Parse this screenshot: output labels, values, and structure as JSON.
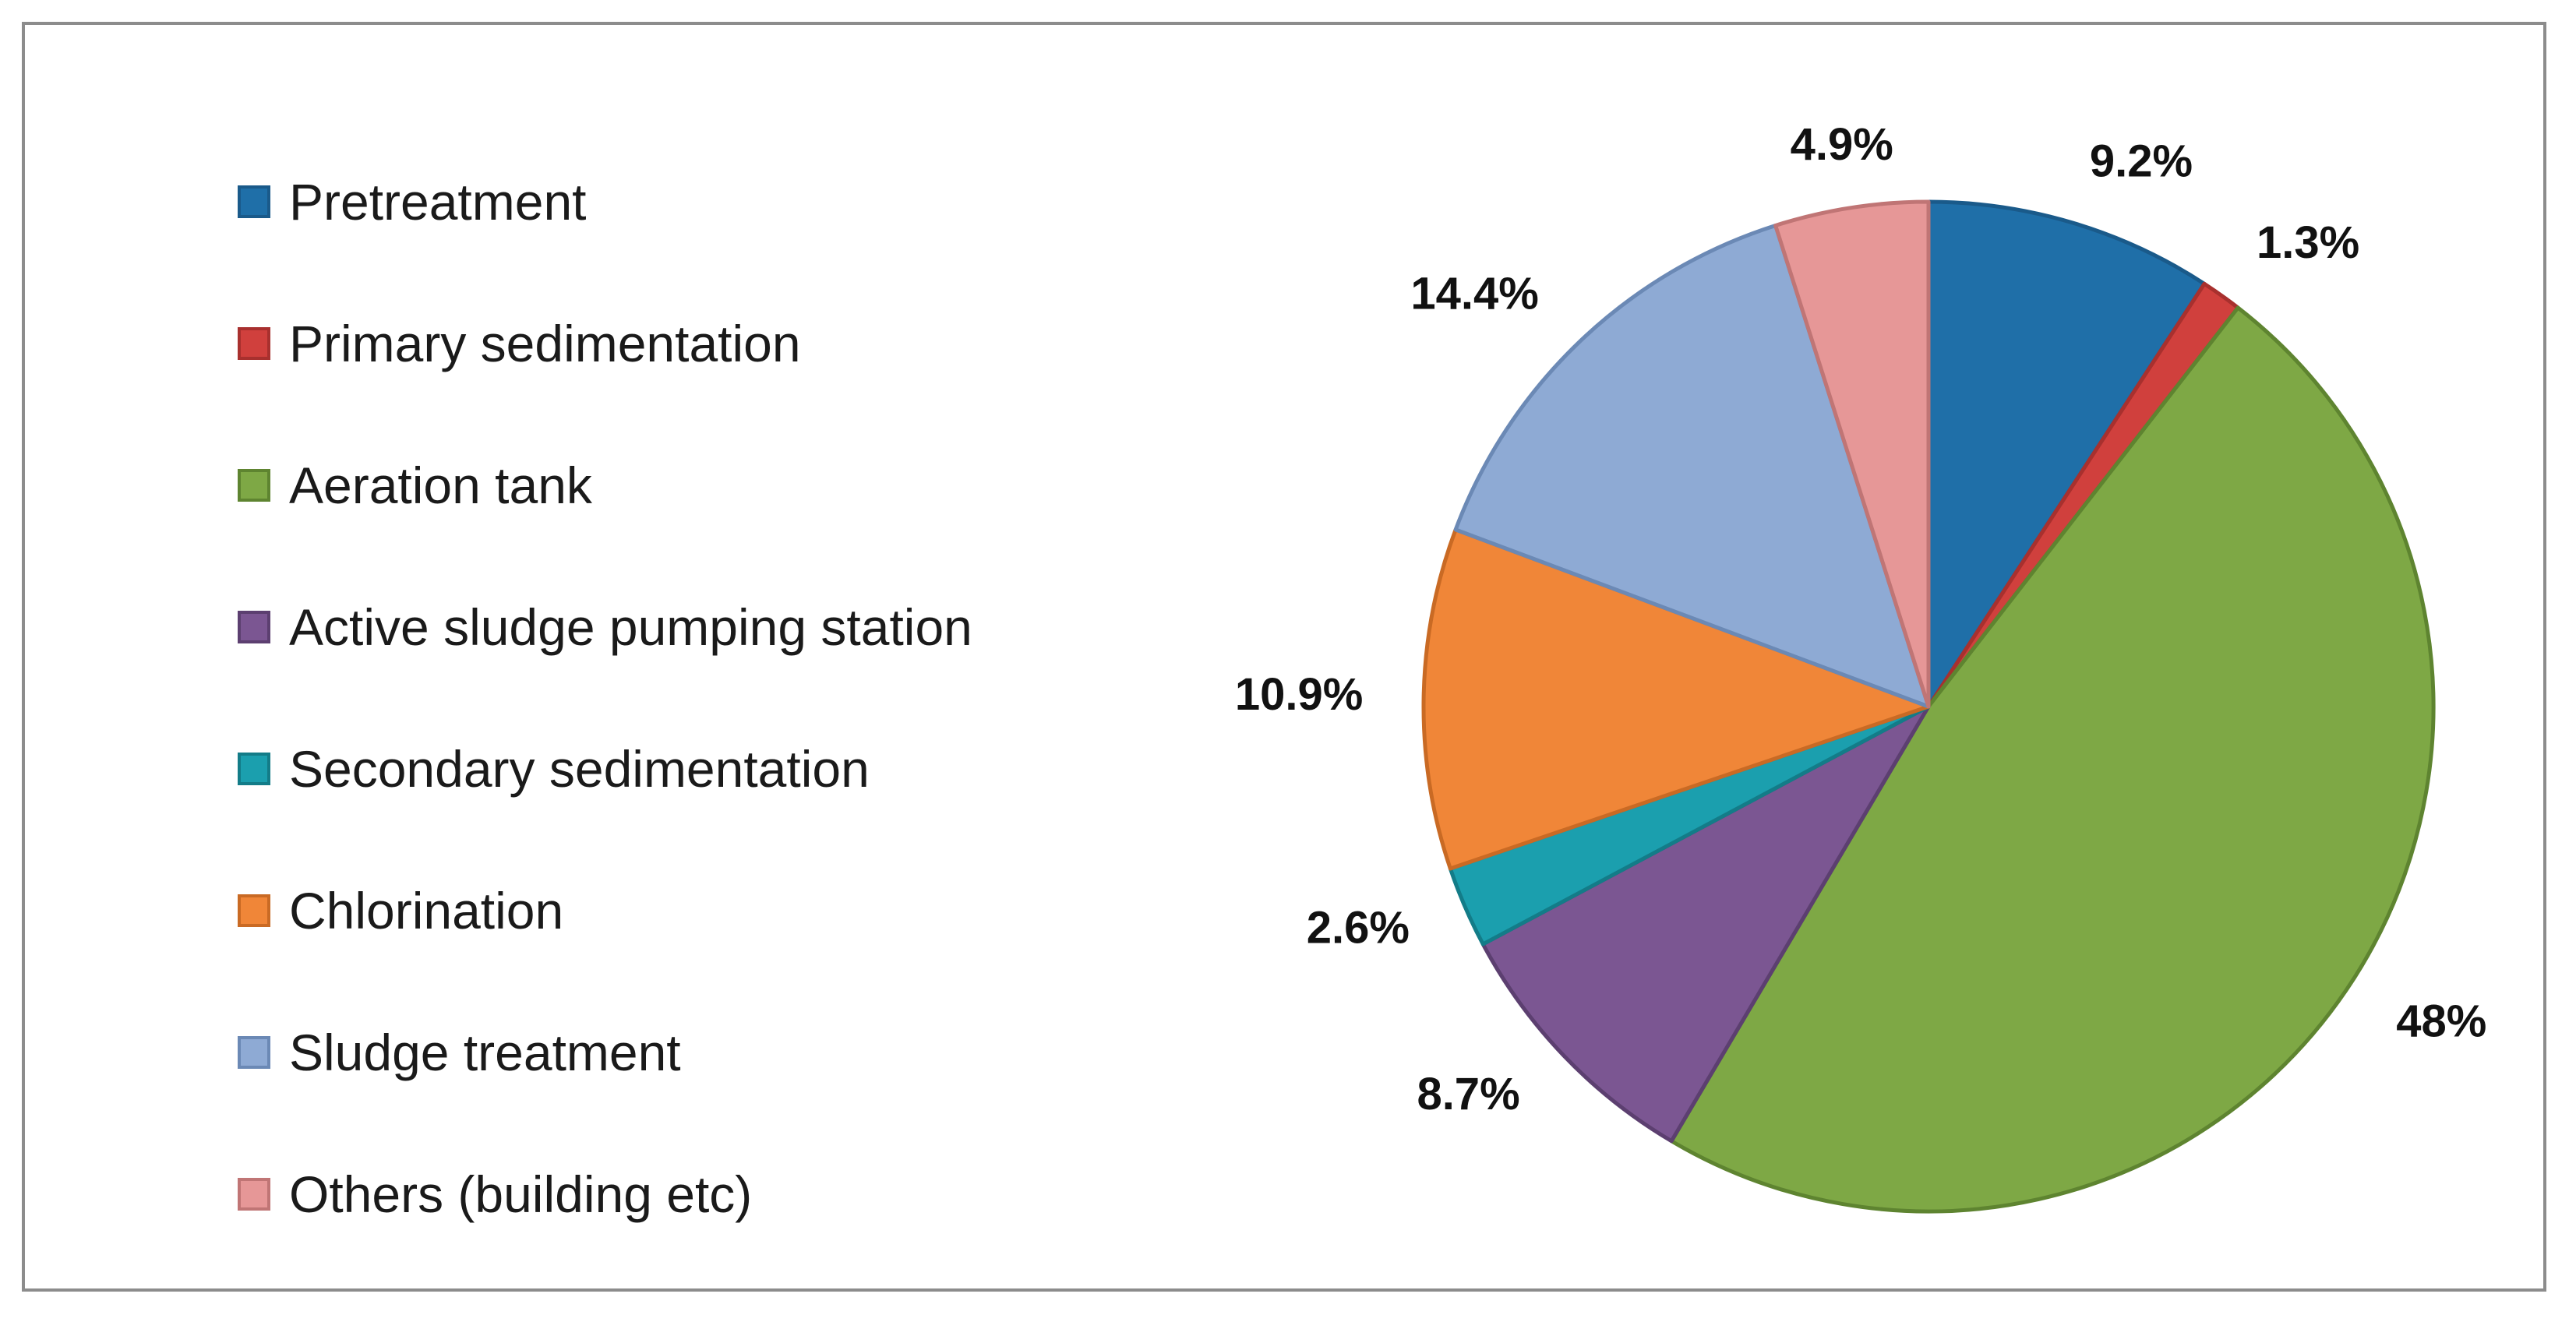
{
  "chart_data": {
    "type": "pie",
    "title": "",
    "legend_position": "left",
    "slices": [
      {
        "name": "Pretreatment",
        "value": 9.2,
        "label": "9.2%",
        "color": "#1f6fa8",
        "stroke": "#1a5a8a"
      },
      {
        "name": "Primary sedimentation",
        "value": 1.3,
        "label": "1.3%",
        "color": "#d0403d",
        "stroke": "#a8302e"
      },
      {
        "name": "Aeration tank",
        "value": 48,
        "label": "48%",
        "color": "#7ea845",
        "stroke": "#5e8430"
      },
      {
        "name": "Active sludge pumping station",
        "value": 8.7,
        "label": "8.7%",
        "color": "#7b5692",
        "stroke": "#5c3f70"
      },
      {
        "name": "Secondary sedimentation",
        "value": 2.6,
        "label": "2.6%",
        "color": "#1b9fae",
        "stroke": "#137c88"
      },
      {
        "name": "Chlorination",
        "value": 10.9,
        "label": "10.9%",
        "color": "#f08638",
        "stroke": "#c96a24"
      },
      {
        "name": "Sludge treatment",
        "value": 14.4,
        "label": "14.4%",
        "color": "#8eaad4",
        "stroke": "#6b89b5"
      },
      {
        "name": "Others (building etc)",
        "value": 4.9,
        "label": "4.9%",
        "color": "#e69797",
        "stroke": "#c07575"
      }
    ]
  }
}
